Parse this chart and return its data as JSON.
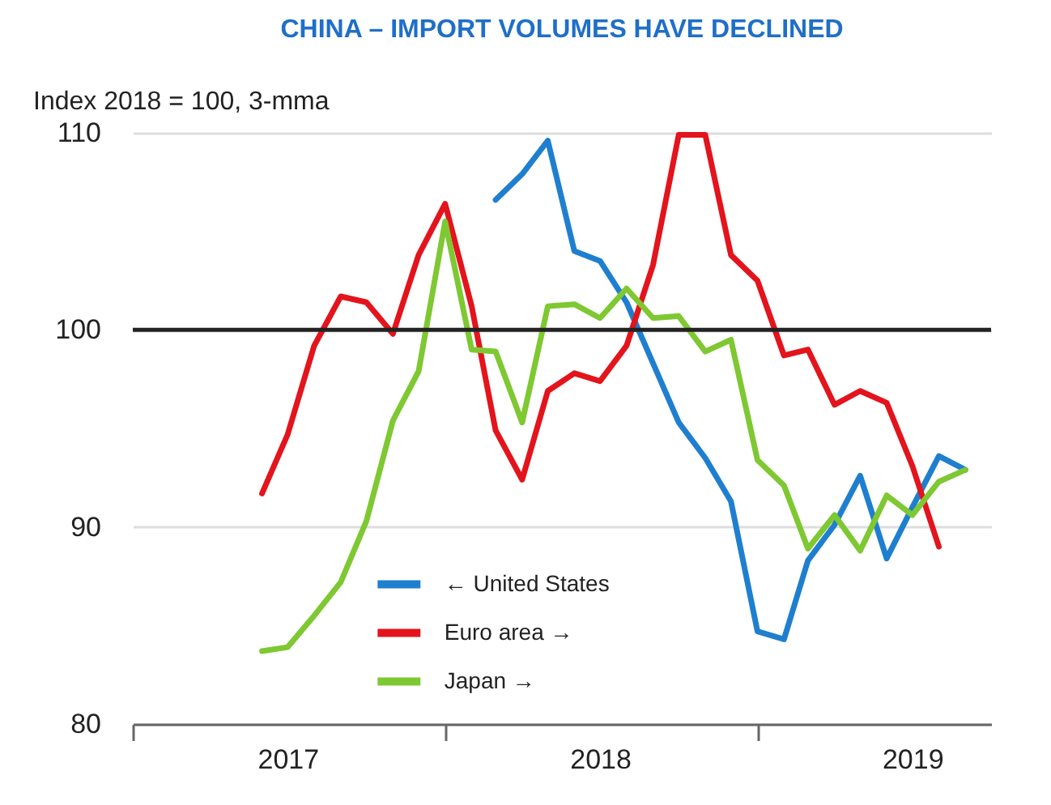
{
  "chart_data": {
    "type": "line",
    "title": "CHINA – IMPORT VOLUMES HAVE DECLINED",
    "ylabel": "Index 2018 = 100, 3-mma",
    "xlim": [
      "2017-01",
      "2019-10"
    ],
    "xticks": [
      {
        "value": "2017-01",
        "label": null
      },
      {
        "value": "2017-07",
        "label": "2017"
      },
      {
        "value": "2018-01",
        "label": null
      },
      {
        "value": "2018-07",
        "label": "2018"
      },
      {
        "value": "2019-01",
        "label": null
      },
      {
        "value": "2019-07",
        "label": "2019"
      }
    ],
    "ylim": [
      80,
      110
    ],
    "yticks": [
      80,
      90,
      100,
      110
    ],
    "grid": "y",
    "legend": "bottom left",
    "line_style": "solid",
    "ref_lines": [
      {
        "axis": "y",
        "value": 100,
        "label": null,
        "color": "#222222"
      }
    ],
    "series": [
      {
        "name": "← United States",
        "color": "#1f7fcf",
        "x": [
          "2018-03",
          "2018-04",
          "2018-05",
          "2018-06",
          "2018-07",
          "2018-08",
          "2018-09",
          "2018-10",
          "2018-11",
          "2018-12",
          "2019-01",
          "2019-02",
          "2019-03",
          "2019-04",
          "2019-05",
          "2019-06",
          "2019-07",
          "2019-08",
          "2019-09"
        ],
        "values": [
          106.6,
          107.9,
          109.6,
          104.0,
          103.5,
          101.4,
          98.3,
          95.3,
          93.5,
          91.3,
          84.7,
          84.3,
          88.3,
          90.1,
          92.6,
          88.4,
          91.0,
          93.6,
          92.9
        ]
      },
      {
        "name": "Euro area →",
        "color": "#e3141c",
        "x": [
          "2017-06",
          "2017-07",
          "2017-08",
          "2017-09",
          "2017-10",
          "2017-11",
          "2017-12",
          "2018-01",
          "2018-02",
          "2018-03",
          "2018-04",
          "2018-05",
          "2018-06",
          "2018-07",
          "2018-08",
          "2018-09",
          "2018-10",
          "2018-11",
          "2018-12",
          "2019-01",
          "2019-02",
          "2019-03",
          "2019-04",
          "2019-05",
          "2019-06",
          "2019-07",
          "2019-08"
        ],
        "values": [
          91.7,
          94.7,
          99.2,
          101.7,
          101.4,
          99.8,
          103.8,
          106.4,
          101.2,
          94.9,
          92.4,
          96.9,
          97.8,
          97.4,
          99.2,
          103.3,
          109.9,
          109.9,
          103.8,
          102.5,
          98.7,
          99.0,
          96.2,
          96.9,
          96.3,
          93.1,
          89.0
        ]
      },
      {
        "name": "Japan →",
        "color": "#7ec832",
        "x": [
          "2017-06",
          "2017-07",
          "2017-08",
          "2017-09",
          "2017-10",
          "2017-11",
          "2017-12",
          "2018-01",
          "2018-02",
          "2018-03",
          "2018-04",
          "2018-05",
          "2018-06",
          "2018-07",
          "2018-08",
          "2018-09",
          "2018-10",
          "2018-11",
          "2018-12",
          "2019-01",
          "2019-02",
          "2019-03",
          "2019-04",
          "2019-05",
          "2019-06",
          "2019-07",
          "2019-08",
          "2019-09"
        ],
        "values": [
          83.7,
          83.9,
          85.5,
          87.2,
          90.3,
          95.4,
          97.9,
          105.5,
          99.0,
          98.9,
          95.3,
          101.2,
          101.3,
          100.6,
          102.1,
          100.6,
          100.7,
          98.9,
          99.5,
          93.4,
          92.1,
          88.9,
          90.6,
          88.8,
          91.6,
          90.6,
          92.3,
          92.9
        ]
      }
    ]
  }
}
